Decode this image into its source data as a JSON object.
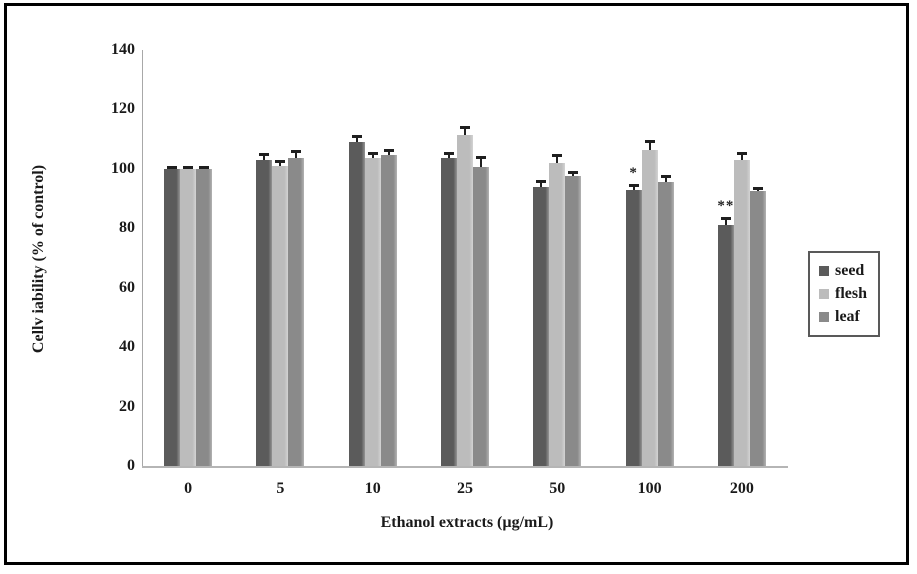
{
  "chart_data": {
    "type": "bar",
    "title": "",
    "xlabel": "Ethanol extracts (µg/mL)",
    "ylabel": "Cellv iability (% of control)",
    "categories": [
      "0",
      "5",
      "10",
      "25",
      "50",
      "100",
      "200"
    ],
    "series": [
      {
        "name": "seed",
        "color": "#5b5b5b",
        "values": [
          100,
          103,
          109,
          103.5,
          94,
          93,
          81
        ],
        "errors": [
          0.7,
          2,
          2,
          2,
          2,
          1.5,
          2.5
        ]
      },
      {
        "name": "flesh",
        "color": "#bcbcbc",
        "values": [
          100,
          101,
          103.5,
          111.5,
          102,
          106.5,
          103
        ],
        "errors": [
          0.7,
          1.5,
          2,
          2.5,
          2.5,
          3,
          2.5
        ]
      },
      {
        "name": "leaf",
        "color": "#8a8a8a",
        "values": [
          100,
          103.5,
          104.5,
          100.5,
          97.5,
          95.5,
          92.5
        ],
        "errors": [
          0.7,
          2.5,
          2,
          3.5,
          1.5,
          2,
          1
        ]
      }
    ],
    "annotations": [
      {
        "series": "seed",
        "category": "100",
        "text": "*"
      },
      {
        "series": "seed",
        "category": "200",
        "text": "**"
      }
    ],
    "ylim": [
      0,
      140
    ],
    "yticks": [
      0,
      20,
      40,
      60,
      80,
      100,
      120,
      140
    ],
    "legend_position": "right",
    "grid": false
  },
  "legend": {
    "items": [
      {
        "label": "seed"
      },
      {
        "label": "flesh"
      },
      {
        "label": "leaf"
      }
    ]
  },
  "colors": {
    "frame_border": "#000000",
    "axis_line": "#a8a8a8",
    "error_bar": "#1f1f1f",
    "text": "#1a1a1a",
    "legend_border": "#595959"
  }
}
